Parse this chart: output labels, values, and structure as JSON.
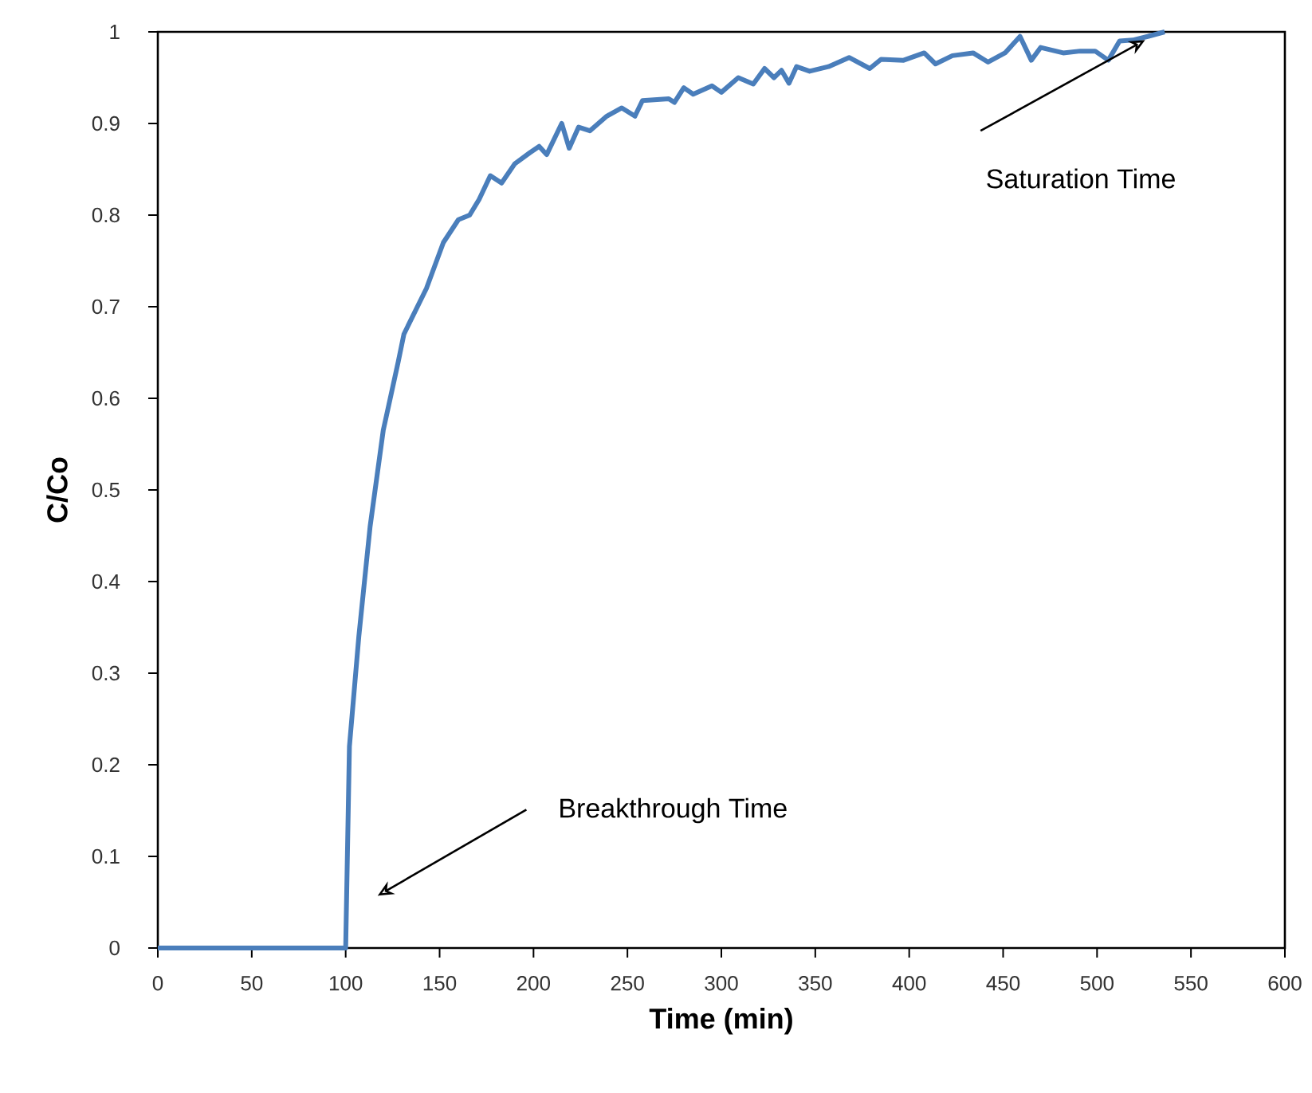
{
  "chart_data": {
    "type": "line",
    "xlabel": "Time (min)",
    "ylabel": "C/Co",
    "xlim": [
      0,
      600
    ],
    "ylim": [
      0,
      1
    ],
    "xticks": [
      0,
      50,
      100,
      150,
      200,
      250,
      300,
      350,
      400,
      450,
      500,
      550,
      600
    ],
    "yticks": [
      0,
      0.1,
      0.2,
      0.3,
      0.4,
      0.5,
      0.6,
      0.7,
      0.8,
      0.9,
      1
    ],
    "series": [
      {
        "color": "#4a7ebb",
        "x": [
          0,
          100,
          102,
          107,
          113,
          120,
          128,
          131,
          143,
          152,
          160,
          166,
          171,
          177,
          183,
          190,
          198,
          203,
          207,
          215,
          219,
          224,
          230,
          239,
          247,
          254,
          258,
          272,
          275,
          280,
          285,
          295,
          300,
          309,
          317,
          323,
          328,
          332,
          336,
          340,
          347,
          357,
          368,
          379,
          385,
          397,
          408,
          414,
          423,
          434,
          442,
          451,
          459,
          465,
          470,
          482,
          491,
          499,
          506,
          512,
          519,
          527,
          536
        ],
        "values": [
          0,
          0,
          0.22,
          0.34,
          0.46,
          0.565,
          0.64,
          0.67,
          0.72,
          0.77,
          0.795,
          0.8,
          0.817,
          0.843,
          0.835,
          0.856,
          0.868,
          0.875,
          0.866,
          0.9,
          0.873,
          0.896,
          0.892,
          0.908,
          0.917,
          0.908,
          0.925,
          0.927,
          0.923,
          0.939,
          0.932,
          0.941,
          0.934,
          0.95,
          0.943,
          0.96,
          0.95,
          0.958,
          0.944,
          0.962,
          0.957,
          0.962,
          0.972,
          0.96,
          0.97,
          0.969,
          0.977,
          0.965,
          0.974,
          0.977,
          0.967,
          0.977,
          0.995,
          0.969,
          0.983,
          0.977,
          0.979,
          0.979,
          0.969,
          0.99,
          0.991,
          0.995,
          1
        ]
      }
    ],
    "annotations": [
      "Breakthrough Time",
      "Saturation Time"
    ]
  }
}
